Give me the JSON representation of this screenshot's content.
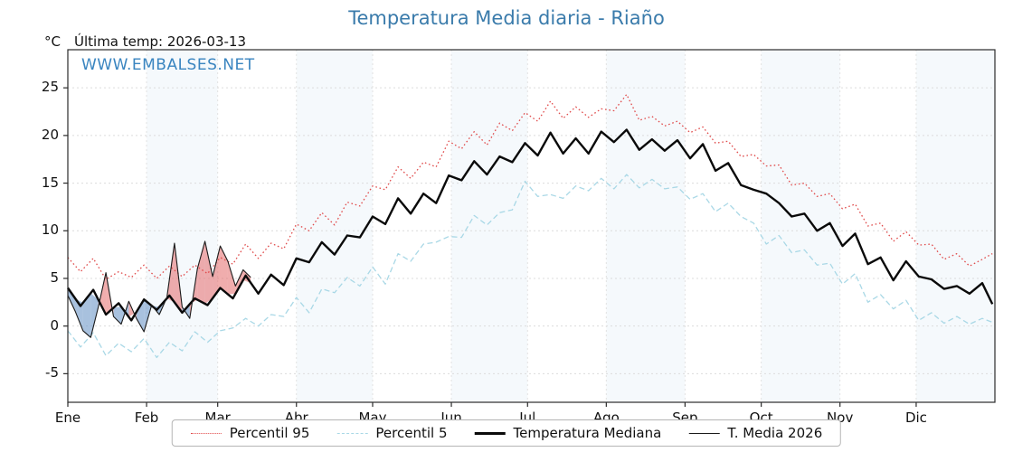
{
  "header": {
    "unit_label": "°C",
    "last_temp_label": "Última temp: 2026-03-13"
  },
  "watermark": "WWW.EMBALSES.NET",
  "colors": {
    "title": "#3a7bab",
    "watermark": "#3a85c0",
    "p95": "#e04b4b",
    "p5": "#a9d8e6",
    "median": "#0a0a0a",
    "media2026": "#1a1a1a",
    "fill_above": "rgba(228,106,106,0.55)",
    "fill_below": "rgba(110,152,200,0.6)"
  },
  "chart_data": {
    "type": "line",
    "title": "Temperatura Media diaria - Riaño",
    "xlabel": "",
    "ylabel": "°C",
    "grid": true,
    "legend_position": "bottom",
    "xlim": [
      0,
      365
    ],
    "ylim": [
      -8,
      29
    ],
    "y_ticks": [
      -5,
      0,
      5,
      10,
      15,
      20,
      25
    ],
    "x_tick_labels": [
      "Ene",
      "Feb",
      "Mar",
      "Abr",
      "May",
      "Jun",
      "Jul",
      "Ago",
      "Sep",
      "Oct",
      "Nov",
      "Dic"
    ],
    "month_start_days": [
      0,
      31,
      59,
      90,
      120,
      151,
      181,
      212,
      243,
      273,
      304,
      334
    ],
    "sample_days": [
      0,
      5,
      10,
      15,
      20,
      25,
      30,
      35,
      40,
      45,
      50,
      55,
      60,
      65,
      70,
      75,
      80,
      85,
      90,
      95,
      100,
      105,
      110,
      115,
      120,
      125,
      130,
      135,
      140,
      145,
      150,
      155,
      160,
      165,
      170,
      175,
      180,
      185,
      190,
      195,
      200,
      205,
      210,
      215,
      220,
      225,
      230,
      235,
      240,
      245,
      250,
      255,
      260,
      265,
      270,
      275,
      280,
      285,
      290,
      295,
      300,
      305,
      310,
      315,
      320,
      325,
      330,
      335,
      340,
      345,
      350,
      355,
      360,
      364
    ],
    "series": [
      {
        "name": "Percentil 95",
        "style": "dotted",
        "width": 1.3,
        "color": "#e04b4b",
        "values": [
          7.2,
          5.7,
          7.1,
          4.9,
          5.7,
          5.1,
          6.4,
          5.0,
          6.3,
          5.2,
          6.4,
          5.5,
          7.2,
          6.5,
          8.6,
          7.1,
          8.7,
          8.1,
          10.7,
          10.0,
          11.9,
          10.6,
          13.0,
          12.6,
          14.7,
          14.3,
          16.7,
          15.5,
          17.2,
          16.7,
          19.4,
          18.6,
          20.4,
          19.0,
          21.3,
          20.5,
          22.4,
          21.5,
          23.6,
          21.8,
          23.0,
          21.9,
          22.8,
          22.6,
          24.3,
          21.6,
          22.0,
          21.0,
          21.5,
          20.3,
          20.9,
          19.2,
          19.4,
          17.8,
          18.0,
          16.8,
          16.9,
          14.8,
          15.0,
          13.6,
          13.9,
          12.3,
          12.8,
          10.5,
          10.8,
          8.9,
          9.9,
          8.5,
          8.6,
          7.0,
          7.6,
          6.3,
          7.0,
          7.6
        ]
      },
      {
        "name": "Percentil 5",
        "style": "dashed",
        "width": 1.3,
        "color": "#a9d8e6",
        "values": [
          -0.5,
          -2.2,
          -0.7,
          -3.1,
          -1.8,
          -2.7,
          -1.3,
          -3.3,
          -1.7,
          -2.6,
          -0.6,
          -1.7,
          -0.5,
          -0.2,
          0.8,
          0.0,
          1.2,
          1.0,
          3.0,
          1.4,
          3.9,
          3.5,
          5.1,
          4.2,
          6.2,
          4.4,
          7.6,
          6.8,
          8.6,
          8.8,
          9.4,
          9.3,
          11.6,
          10.6,
          11.9,
          12.2,
          15.2,
          13.6,
          13.8,
          13.4,
          14.7,
          14.2,
          15.5,
          14.4,
          15.9,
          14.5,
          15.4,
          14.4,
          14.6,
          13.3,
          13.9,
          12.0,
          12.9,
          11.5,
          10.8,
          8.6,
          9.5,
          7.7,
          8.0,
          6.4,
          6.6,
          4.4,
          5.5,
          2.5,
          3.3,
          1.8,
          2.7,
          0.6,
          1.4,
          0.3,
          1.0,
          0.2,
          0.8,
          0.4
        ]
      },
      {
        "name": "Temperatura Mediana",
        "style": "solid",
        "width": 2.4,
        "color": "#0a0a0a",
        "values": [
          4.0,
          2.1,
          3.8,
          1.2,
          2.4,
          0.6,
          2.8,
          1.7,
          3.2,
          1.4,
          2.9,
          2.2,
          4.0,
          2.9,
          5.3,
          3.4,
          5.4,
          4.3,
          7.1,
          6.7,
          8.8,
          7.5,
          9.5,
          9.3,
          11.5,
          10.7,
          13.4,
          11.8,
          13.9,
          12.9,
          15.8,
          15.3,
          17.3,
          15.9,
          17.8,
          17.2,
          19.2,
          17.9,
          20.3,
          18.1,
          19.7,
          18.1,
          20.4,
          19.3,
          20.6,
          18.5,
          19.6,
          18.4,
          19.5,
          17.6,
          19.1,
          16.3,
          17.1,
          14.8,
          14.3,
          13.9,
          12.9,
          11.5,
          11.8,
          10.0,
          10.8,
          8.4,
          9.7,
          6.5,
          7.2,
          4.8,
          6.8,
          5.2,
          4.9,
          3.9,
          4.2,
          3.4,
          4.5,
          2.3
        ]
      },
      {
        "name": "T. Media 2026",
        "style": "solid",
        "width": 1.1,
        "color": "#1a1a1a",
        "days": [
          0,
          3,
          6,
          9,
          12,
          15,
          18,
          21,
          24,
          27,
          30,
          33,
          36,
          39,
          42,
          45,
          48,
          51,
          54,
          57,
          60,
          63,
          66,
          69,
          72
        ],
        "values": [
          3.2,
          1.5,
          -0.5,
          -1.2,
          2.0,
          5.6,
          1.0,
          0.2,
          2.6,
          0.8,
          -0.6,
          2.2,
          1.2,
          3.0,
          8.7,
          2.0,
          0.8,
          6.0,
          8.9,
          5.2,
          8.4,
          6.8,
          4.2,
          5.9,
          5.1
        ],
        "fill_above_median_color": "rgba(228,106,106,0.55)",
        "fill_below_median_color": "rgba(110,152,200,0.6)"
      }
    ]
  }
}
